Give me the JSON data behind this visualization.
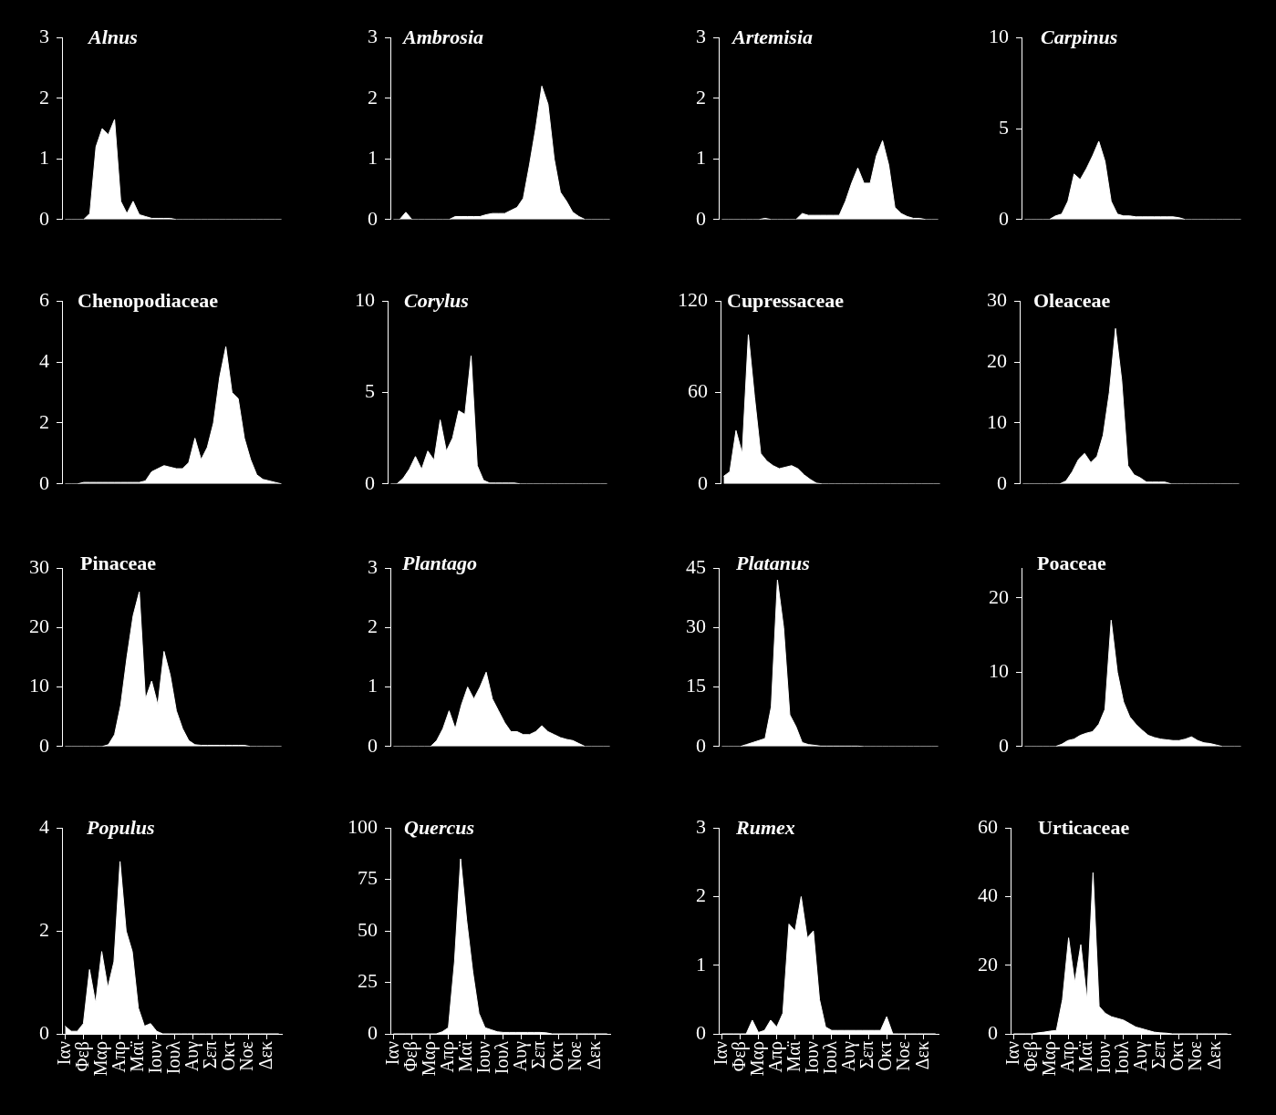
{
  "chart_data": [
    {
      "type": "area",
      "title": "Alnus",
      "color": "#ffffff",
      "ylim": [
        0,
        3
      ],
      "yticks": [
        0,
        1,
        2,
        3
      ],
      "tick_labels": "y",
      "categories": [
        null,
        null,
        null,
        null,
        null,
        null,
        null,
        null,
        null,
        null,
        null,
        null,
        null,
        null,
        null,
        null,
        null,
        null,
        null,
        null,
        null,
        null,
        null,
        null,
        null,
        null,
        null,
        null,
        null,
        null,
        null,
        null,
        null,
        null,
        null,
        null
      ],
      "values": [
        0,
        0,
        0,
        0,
        0.1,
        1.2,
        1.5,
        1.4,
        1.65,
        0.3,
        0.1,
        0.3,
        0.08,
        0.05,
        0.02,
        0.02,
        0.02,
        0.02,
        0,
        0,
        0,
        0,
        0,
        0,
        0,
        0,
        0,
        0,
        0,
        0,
        0,
        0,
        0,
        0,
        0,
        0
      ]
    },
    {
      "type": "area",
      "title": "Ambrosia",
      "color": "#ffffff",
      "ylim": [
        0,
        3
      ],
      "yticks": [
        0,
        1,
        2,
        3
      ],
      "tick_labels": "y",
      "categories": [
        null,
        null,
        null,
        null,
        null,
        null,
        null,
        null,
        null,
        null,
        null,
        null,
        null,
        null,
        null,
        null,
        null,
        null,
        null,
        null,
        null,
        null,
        null,
        null,
        null,
        null,
        null,
        null,
        null,
        null,
        null,
        null,
        null,
        null,
        null,
        null
      ],
      "values": [
        0,
        0,
        0.12,
        0,
        0,
        0,
        0,
        0,
        0,
        0,
        0.05,
        0.05,
        0.05,
        0.05,
        0.05,
        0.08,
        0.1,
        0.1,
        0.1,
        0.15,
        0.2,
        0.35,
        0.9,
        1.5,
        2.2,
        1.9,
        1.0,
        0.45,
        0.3,
        0.12,
        0.05,
        0,
        0,
        0,
        0,
        0
      ]
    },
    {
      "type": "area",
      "title": "Artemisia",
      "color": "#ffffff",
      "ylim": [
        0,
        3
      ],
      "yticks": [
        0,
        1,
        2,
        3
      ],
      "tick_labels": "y",
      "categories": [
        null,
        null,
        null,
        null,
        null,
        null,
        null,
        null,
        null,
        null,
        null,
        null,
        null,
        null,
        null,
        null,
        null,
        null,
        null,
        null,
        null,
        null,
        null,
        null,
        null,
        null,
        null,
        null,
        null,
        null,
        null,
        null,
        null,
        null,
        null,
        null
      ],
      "values": [
        0,
        0,
        0,
        0,
        0,
        0,
        0,
        0.02,
        0,
        0,
        0,
        0,
        0,
        0.1,
        0.07,
        0.07,
        0.07,
        0.07,
        0.07,
        0.07,
        0.3,
        0.6,
        0.85,
        0.6,
        0.6,
        1.05,
        1.3,
        0.9,
        0.2,
        0.1,
        0.05,
        0.02,
        0.02,
        0,
        0,
        0
      ]
    },
    {
      "type": "area",
      "title": "Carpinus",
      "color": "#ffffff",
      "ylim": [
        0,
        10
      ],
      "yticks": [
        0,
        5,
        10
      ],
      "tick_labels": "y",
      "categories": [
        null,
        null,
        null,
        null,
        null,
        null,
        null,
        null,
        null,
        null,
        null,
        null,
        null,
        null,
        null,
        null,
        null,
        null,
        null,
        null,
        null,
        null,
        null,
        null,
        null,
        null,
        null,
        null,
        null,
        null,
        null,
        null,
        null,
        null,
        null,
        null
      ],
      "values": [
        0,
        0,
        0,
        0,
        0,
        0.2,
        0.3,
        1.0,
        2.5,
        2.2,
        2.8,
        3.5,
        4.3,
        3.2,
        1.0,
        0.3,
        0.2,
        0.2,
        0.15,
        0.15,
        0.15,
        0.15,
        0.15,
        0.15,
        0.15,
        0.1,
        0,
        0,
        0,
        0,
        0,
        0,
        0,
        0,
        0,
        0
      ]
    },
    {
      "type": "area",
      "title": "Chenopodiaceae",
      "color": "#ffffff",
      "ylim": [
        0,
        6
      ],
      "yticks": [
        0,
        2,
        4,
        6
      ],
      "tick_labels": "y",
      "categories": [
        null,
        null,
        null,
        null,
        null,
        null,
        null,
        null,
        null,
        null,
        null,
        null,
        null,
        null,
        null,
        null,
        null,
        null,
        null,
        null,
        null,
        null,
        null,
        null,
        null,
        null,
        null,
        null,
        null,
        null,
        null,
        null,
        null,
        null,
        null,
        null
      ],
      "values": [
        0,
        0,
        0,
        0.05,
        0.05,
        0.05,
        0.05,
        0.05,
        0.05,
        0.05,
        0.05,
        0.05,
        0.05,
        0.1,
        0.4,
        0.5,
        0.6,
        0.55,
        0.5,
        0.5,
        0.7,
        1.5,
        0.8,
        1.2,
        2.0,
        3.5,
        4.5,
        3.0,
        2.8,
        1.5,
        0.8,
        0.3,
        0.15,
        0.1,
        0.05,
        0
      ]
    },
    {
      "type": "area",
      "title": "Corylus",
      "color": "#ffffff",
      "ylim": [
        0,
        10
      ],
      "yticks": [
        0,
        5,
        10
      ],
      "tick_labels": "y",
      "categories": [
        null,
        null,
        null,
        null,
        null,
        null,
        null,
        null,
        null,
        null,
        null,
        null,
        null,
        null,
        null,
        null,
        null,
        null,
        null,
        null,
        null,
        null,
        null,
        null,
        null,
        null,
        null,
        null,
        null,
        null,
        null,
        null,
        null,
        null,
        null,
        null
      ],
      "values": [
        0,
        0,
        0.3,
        0.8,
        1.5,
        0.8,
        1.8,
        1.3,
        3.5,
        1.8,
        2.5,
        4.0,
        3.8,
        7.0,
        1.0,
        0.2,
        0.05,
        0.05,
        0.05,
        0.05,
        0.05,
        0,
        0,
        0,
        0,
        0,
        0,
        0,
        0,
        0,
        0,
        0,
        0,
        0,
        0,
        0
      ]
    },
    {
      "type": "area",
      "title": "Cupressaceae",
      "color": "#ffffff",
      "ylim": [
        0,
        120
      ],
      "yticks": [
        0,
        60,
        120
      ],
      "tick_labels": "y",
      "categories": [
        null,
        null,
        null,
        null,
        null,
        null,
        null,
        null,
        null,
        null,
        null,
        null,
        null,
        null,
        null,
        null,
        null,
        null,
        null,
        null,
        null,
        null,
        null,
        null,
        null,
        null,
        null,
        null,
        null,
        null,
        null,
        null,
        null,
        null,
        null,
        null
      ],
      "values": [
        5,
        8,
        35,
        20,
        98,
        57,
        20,
        15,
        12,
        10,
        11,
        12,
        10,
        6,
        3,
        0.5,
        0,
        0,
        0,
        0,
        0,
        0,
        0,
        0,
        0,
        0,
        0,
        0,
        0,
        0,
        0,
        0,
        0,
        0,
        0,
        0
      ]
    },
    {
      "type": "area",
      "title": "Oleaceae",
      "color": "#ffffff",
      "ylim": [
        0,
        30
      ],
      "yticks": [
        0,
        10,
        20,
        30
      ],
      "tick_labels": "y",
      "categories": [
        null,
        null,
        null,
        null,
        null,
        null,
        null,
        null,
        null,
        null,
        null,
        null,
        null,
        null,
        null,
        null,
        null,
        null,
        null,
        null,
        null,
        null,
        null,
        null,
        null,
        null,
        null,
        null,
        null,
        null,
        null,
        null,
        null,
        null,
        null,
        null
      ],
      "values": [
        0,
        0,
        0,
        0,
        0,
        0,
        0,
        0.5,
        2,
        4,
        5,
        3.5,
        4.5,
        8,
        15,
        25.5,
        17,
        3,
        1.5,
        1,
        0.3,
        0.3,
        0.3,
        0.3,
        0,
        0,
        0,
        0,
        0,
        0,
        0,
        0,
        0,
        0,
        0,
        0
      ]
    },
    {
      "type": "area",
      "title": "Pinaceae",
      "color": "#ffffff",
      "ylim": [
        0,
        30
      ],
      "yticks": [
        0,
        10,
        20,
        30
      ],
      "tick_labels": "y",
      "categories": [
        null,
        null,
        null,
        null,
        null,
        null,
        null,
        null,
        null,
        null,
        null,
        null,
        null,
        null,
        null,
        null,
        null,
        null,
        null,
        null,
        null,
        null,
        null,
        null,
        null,
        null,
        null,
        null,
        null,
        null,
        null,
        null,
        null,
        null,
        null,
        null
      ],
      "values": [
        0,
        0,
        0,
        0,
        0,
        0,
        0,
        0.3,
        2,
        7,
        15,
        22,
        26,
        8,
        11,
        7,
        16,
        12,
        6,
        3,
        1,
        0.3,
        0.2,
        0.2,
        0.2,
        0.2,
        0.2,
        0.2,
        0.2,
        0.2,
        0,
        0,
        0,
        0,
        0,
        0
      ]
    },
    {
      "type": "area",
      "title": "Plantago",
      "color": "#ffffff",
      "ylim": [
        0,
        3
      ],
      "yticks": [
        0,
        1,
        2,
        3
      ],
      "tick_labels": "y",
      "categories": [
        null,
        null,
        null,
        null,
        null,
        null,
        null,
        null,
        null,
        null,
        null,
        null,
        null,
        null,
        null,
        null,
        null,
        null,
        null,
        null,
        null,
        null,
        null,
        null,
        null,
        null,
        null,
        null,
        null,
        null,
        null,
        null,
        null,
        null,
        null,
        null
      ],
      "values": [
        0,
        0,
        0,
        0,
        0,
        0,
        0,
        0.1,
        0.3,
        0.6,
        0.3,
        0.7,
        1.0,
        0.8,
        1.0,
        1.25,
        0.8,
        0.6,
        0.4,
        0.25,
        0.25,
        0.2,
        0.2,
        0.25,
        0.35,
        0.25,
        0.2,
        0.15,
        0.12,
        0.1,
        0.05,
        0,
        0,
        0,
        0,
        0
      ]
    },
    {
      "type": "area",
      "title": "Platanus",
      "color": "#ffffff",
      "ylim": [
        0,
        45
      ],
      "yticks": [
        0,
        15,
        30,
        45
      ],
      "tick_labels": "y",
      "categories": [
        null,
        null,
        null,
        null,
        null,
        null,
        null,
        null,
        null,
        null,
        null,
        null,
        null,
        null,
        null,
        null,
        null,
        null,
        null,
        null,
        null,
        null,
        null,
        null,
        null,
        null,
        null,
        null,
        null,
        null,
        null,
        null,
        null,
        null,
        null,
        null
      ],
      "values": [
        0,
        0,
        0,
        0,
        0.5,
        1,
        1.5,
        2,
        10,
        42,
        30,
        8,
        5,
        1,
        0.5,
        0.3,
        0.1,
        0.1,
        0.1,
        0.1,
        0.1,
        0.1,
        0.1,
        0,
        0,
        0,
        0,
        0,
        0,
        0,
        0,
        0,
        0,
        0,
        0,
        0
      ]
    },
    {
      "type": "area",
      "title": "Poaceae",
      "color": "#ffffff",
      "ylim": [
        0,
        24
      ],
      "yticks": [
        0,
        10,
        20
      ],
      "tick_labels": "y",
      "categories": [
        null,
        null,
        null,
        null,
        null,
        null,
        null,
        null,
        null,
        null,
        null,
        null,
        null,
        null,
        null,
        null,
        null,
        null,
        null,
        null,
        null,
        null,
        null,
        null,
        null,
        null,
        null,
        null,
        null,
        null,
        null,
        null,
        null,
        null,
        null,
        null
      ],
      "values": [
        0,
        0,
        0,
        0,
        0,
        0,
        0.3,
        0.8,
        1,
        1.5,
        1.8,
        2,
        3,
        5,
        17,
        10,
        6,
        4,
        3,
        2.2,
        1.5,
        1.2,
        1,
        0.9,
        0.8,
        0.8,
        1,
        1.3,
        0.8,
        0.5,
        0.4,
        0.2,
        0,
        0,
        0,
        0
      ]
    },
    {
      "type": "area",
      "title": "Populus",
      "color": "#ffffff",
      "ylim": [
        0,
        4
      ],
      "yticks": [
        0,
        2,
        4
      ],
      "categories": [
        "Ιαν",
        null,
        null,
        "Φεβ",
        null,
        null,
        "Μαρ",
        null,
        null,
        "Απρ",
        null,
        null,
        "Μαϊ",
        null,
        null,
        "Ιουν",
        null,
        null,
        "Ιουλ",
        null,
        null,
        "Αυγ",
        null,
        null,
        "Σεπ",
        null,
        null,
        "Οκτ",
        null,
        null,
        "Νοε",
        null,
        null,
        "Δεκ",
        null,
        null
      ],
      "values": [
        0.15,
        0.05,
        0.05,
        0.2,
        1.25,
        0.6,
        1.6,
        0.9,
        1.4,
        3.35,
        2.0,
        1.6,
        0.5,
        0.15,
        0.2,
        0.05,
        0,
        0,
        0,
        0,
        0,
        0,
        0,
        0,
        0,
        0,
        0,
        0,
        0,
        0,
        0,
        0,
        0,
        0,
        0,
        0
      ]
    },
    {
      "type": "area",
      "title": "Quercus",
      "color": "#ffffff",
      "ylim": [
        0,
        100
      ],
      "yticks": [
        0,
        25,
        50,
        75,
        100
      ],
      "categories": [
        "Ιαν",
        null,
        null,
        "Φεβ",
        null,
        null,
        "Μαρ",
        null,
        null,
        "Απρ",
        null,
        null,
        "Μαϊ",
        null,
        null,
        "Ιουν",
        null,
        null,
        "Ιουλ",
        null,
        null,
        "Αυγ",
        null,
        null,
        "Σεπ",
        null,
        null,
        "Οκτ",
        null,
        null,
        "Νοε",
        null,
        null,
        "Δεκ",
        null,
        null
      ],
      "values": [
        0,
        0,
        0,
        0,
        0,
        0,
        0,
        0,
        1,
        3,
        35,
        85,
        55,
        30,
        10,
        3,
        2,
        1,
        0.7,
        0.7,
        0.7,
        0.7,
        0.7,
        0.7,
        0.7,
        0.5,
        0,
        0,
        0,
        0,
        0,
        0,
        0,
        0,
        0,
        0
      ]
    },
    {
      "type": "area",
      "title": "Rumex",
      "color": "#ffffff",
      "ylim": [
        0,
        3
      ],
      "yticks": [
        0,
        1,
        2,
        3
      ],
      "categories": [
        "Ιαν",
        null,
        null,
        "Φεβ",
        null,
        null,
        "Μαρ",
        null,
        null,
        "Απρ",
        null,
        null,
        "Μαϊ",
        null,
        null,
        "Ιουν",
        null,
        null,
        "Ιουλ",
        null,
        null,
        "Αυγ",
        null,
        null,
        "Σεπ",
        null,
        null,
        "Οκτ",
        null,
        null,
        "Νοε",
        null,
        null,
        "Δεκ",
        null,
        null
      ],
      "values": [
        0,
        0,
        0,
        0,
        0,
        0.2,
        0.02,
        0.05,
        0.2,
        0.1,
        0.3,
        1.6,
        1.5,
        2.0,
        1.4,
        1.5,
        0.5,
        0.1,
        0.05,
        0.05,
        0.05,
        0.05,
        0.05,
        0.05,
        0.05,
        0.05,
        0.05,
        0.25,
        0,
        0,
        0,
        0,
        0,
        0,
        0,
        0
      ]
    },
    {
      "type": "area",
      "title": "Urticaceae",
      "color": "#ffffff",
      "ylim": [
        0,
        60
      ],
      "yticks": [
        0,
        20,
        40,
        60
      ],
      "categories": [
        "Ιαν",
        null,
        null,
        "Φεβ",
        null,
        null,
        "Μαρ",
        null,
        null,
        "Απρ",
        null,
        null,
        "Μαϊ",
        null,
        null,
        "Ιουν",
        null,
        null,
        "Ιουλ",
        null,
        null,
        "Αυγ",
        null,
        null,
        "Σεπ",
        null,
        null,
        "Οκτ",
        null,
        null,
        "Νοε",
        null,
        null,
        "Δεκ",
        null,
        null
      ],
      "values": [
        0,
        0,
        0,
        0,
        0.3,
        0.5,
        0.8,
        1,
        10,
        28,
        15,
        26,
        10,
        47,
        8,
        6,
        5,
        4.5,
        4,
        3,
        2,
        1.5,
        1,
        0.5,
        0.3,
        0.2,
        0,
        0,
        0,
        0,
        0,
        0,
        0,
        0,
        0,
        0
      ]
    }
  ]
}
